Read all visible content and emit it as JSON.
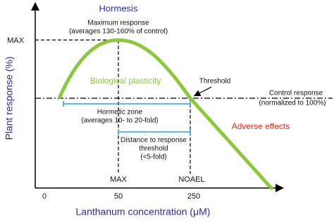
{
  "title": "Hormesis",
  "y_axis": {
    "label": "Plant response (%)",
    "max_label": "MAX"
  },
  "x_axis": {
    "label": "Lanthanum concentration (μM)",
    "ticks": [
      "0",
      "50",
      "250"
    ],
    "markers": [
      "MAX",
      "NOAEL"
    ]
  },
  "annotations": {
    "max_response": [
      "Maximum response",
      "(averages 130-160% of control)"
    ],
    "plasticity": "Biological plasticity",
    "threshold": "Threshold",
    "control_response": [
      "Control response",
      "(normalized to 100%)"
    ],
    "hormetic_zone": [
      "Hormetic zone",
      "(averages 10- to 20-fold)"
    ],
    "adverse": "Adverse effects",
    "distance": [
      "Distance to response",
      "threshold",
      "(<5-fold)"
    ]
  }
}
